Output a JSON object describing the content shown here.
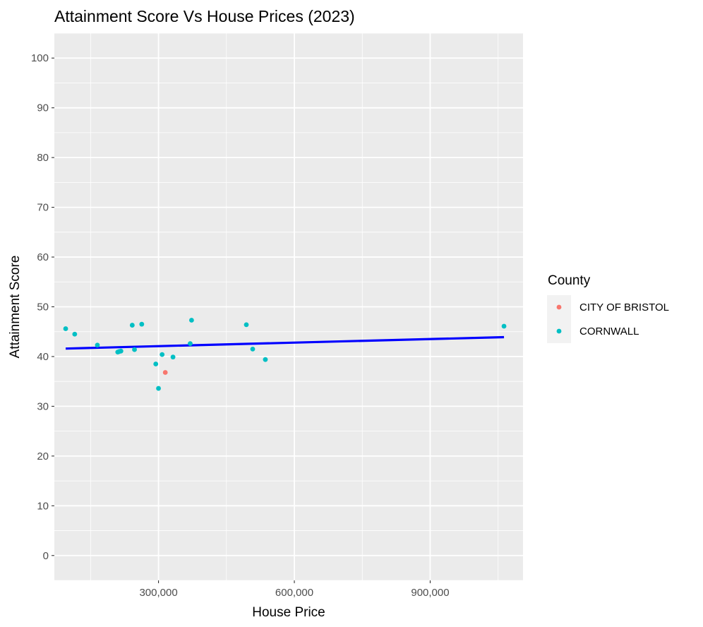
{
  "chart_data": {
    "type": "scatter",
    "title": "Attainment Score Vs House Prices (2023)",
    "xlabel": "House Price",
    "ylabel": "Attainment Score",
    "xlim": [
      70000,
      1105000
    ],
    "ylim": [
      -5,
      105
    ],
    "x_ticks": [
      {
        "value": 300000,
        "label": "300,000"
      },
      {
        "value": 600000,
        "label": "600,000"
      },
      {
        "value": 900000,
        "label": "900,000"
      }
    ],
    "y_ticks": [
      {
        "value": 0,
        "label": "0"
      },
      {
        "value": 10,
        "label": "10"
      },
      {
        "value": 20,
        "label": "20"
      },
      {
        "value": 30,
        "label": "30"
      },
      {
        "value": 40,
        "label": "40"
      },
      {
        "value": 50,
        "label": "50"
      },
      {
        "value": 60,
        "label": "60"
      },
      {
        "value": 70,
        "label": "70"
      },
      {
        "value": 80,
        "label": "80"
      },
      {
        "value": 90,
        "label": "90"
      },
      {
        "value": 100,
        "label": "100"
      }
    ],
    "grid": true,
    "background_color": "#ebebeb",
    "grid_color": "#ffffff",
    "legend": {
      "title": "County",
      "position": "right",
      "entries": [
        {
          "label": "CITY OF BRISTOL",
          "color": "#f8766d"
        },
        {
          "label": "CORNWALL",
          "color": "#00bfc4"
        }
      ]
    },
    "series": [
      {
        "name": "CITY OF BRISTOL",
        "color": "#f8766d",
        "points": [
          {
            "x": 315000,
            "y": 36.8
          }
        ]
      },
      {
        "name": "CORNWALL",
        "color": "#00bfc4",
        "points": [
          {
            "x": 95000,
            "y": 45.6
          },
          {
            "x": 115000,
            "y": 44.5
          },
          {
            "x": 165000,
            "y": 42.3
          },
          {
            "x": 210000,
            "y": 40.9
          },
          {
            "x": 213000,
            "y": 41.0
          },
          {
            "x": 217000,
            "y": 41.1
          },
          {
            "x": 242000,
            "y": 46.3
          },
          {
            "x": 247000,
            "y": 41.4
          },
          {
            "x": 263000,
            "y": 46.5
          },
          {
            "x": 294000,
            "y": 38.5
          },
          {
            "x": 300000,
            "y": 33.6
          },
          {
            "x": 308000,
            "y": 40.4
          },
          {
            "x": 332000,
            "y": 39.9
          },
          {
            "x": 370000,
            "y": 42.6
          },
          {
            "x": 373000,
            "y": 47.3
          },
          {
            "x": 494000,
            "y": 46.4
          },
          {
            "x": 508000,
            "y": 41.5
          },
          {
            "x": 536000,
            "y": 39.4
          },
          {
            "x": 1063000,
            "y": 46.1
          }
        ]
      }
    ],
    "trend_line": {
      "color": "#0000ff",
      "x": [
        95000,
        1063000
      ],
      "y": [
        41.6,
        43.9
      ]
    }
  }
}
